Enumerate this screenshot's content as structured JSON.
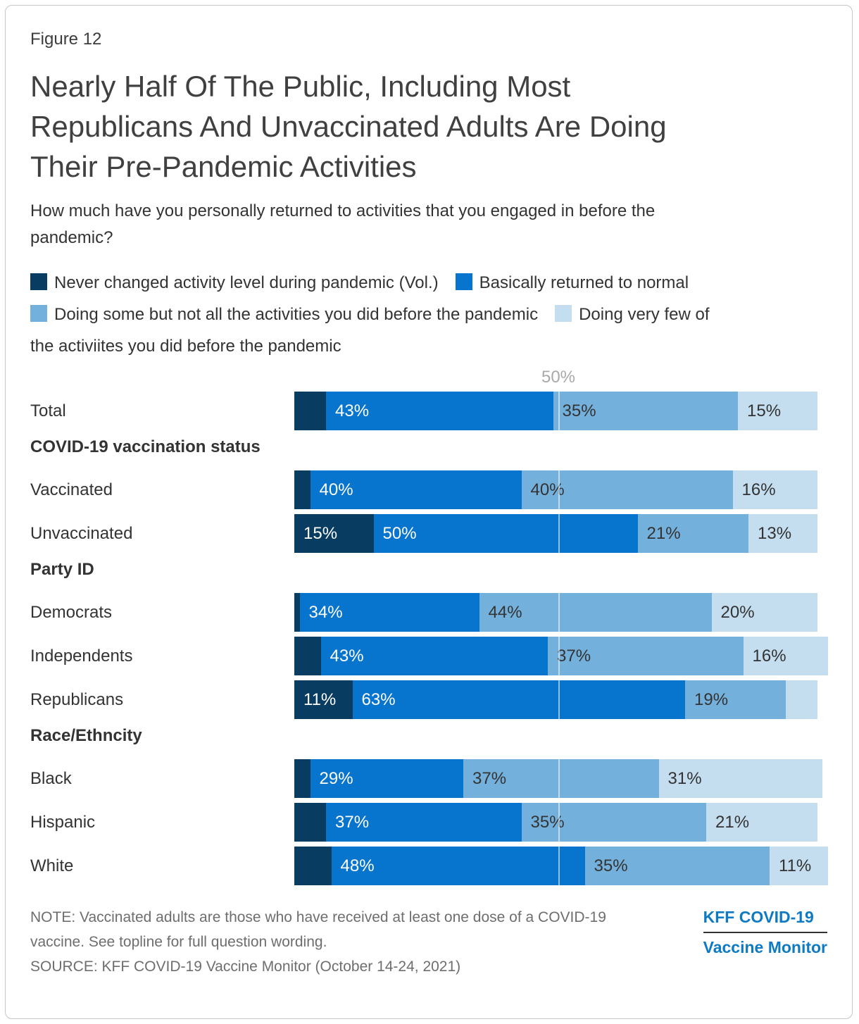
{
  "figure_label": "Figure 12",
  "title": "Nearly Half Of The Public, Including Most Republicans And Unvaccinated Adults Are Doing Their Pre-Pandemic Activities",
  "title_lines": [
    "Nearly Half Of The Public, Including Most",
    "Republicans And Unvaccinated Adults Are Doing",
    "Their Pre-Pandemic Activities"
  ],
  "subtitle": "How much have you personally returned to activities that you engaged in before the pandemic?",
  "subtitle_lines": [
    "How much have you personally returned to activities that you engaged in before the",
    "pandemic?"
  ],
  "colors": {
    "dark": "#083c61",
    "blue": "#0774cd",
    "light": "#74b0dc",
    "lightest": "#c4def0",
    "label_on_dark": "#ffffff",
    "label_on_light": "#333333",
    "logo_blue": "#0e7ac4",
    "axis_gray": "#a9a9a9",
    "note_gray": "#6e6e6e"
  },
  "legend_rows": [
    [
      {
        "swatch": "dark",
        "text": "Never changed activity level during pandemic (Vol.)"
      },
      {
        "swatch": "blue",
        "text": "Basically returned to normal"
      }
    ],
    [
      {
        "swatch": "light",
        "text": "Doing some but not all the activities you did before the pandemic"
      },
      {
        "swatch": "lightest",
        "text": "Doing very few of"
      }
    ],
    [
      {
        "text": "the activiites you did before the pandemic"
      }
    ]
  ],
  "chart_data": {
    "type": "bar",
    "stacked": true,
    "orientation": "horizontal",
    "unit": "%",
    "xlim": [
      0,
      100
    ],
    "gridline": {
      "x": 50,
      "label": "50%"
    },
    "series_color_keys": [
      "dark",
      "blue",
      "light",
      "lightest"
    ],
    "series": [
      {
        "name": "Never changed activity level during pandemic (Vol.)",
        "values": [
          6,
          3,
          15,
          1,
          5,
          11,
          3,
          6,
          7
        ]
      },
      {
        "name": "Basically returned to normal",
        "values": [
          43,
          40,
          50,
          34,
          43,
          63,
          29,
          37,
          48
        ]
      },
      {
        "name": "Doing some but not all the activities you did before the pandemic",
        "values": [
          35,
          40,
          21,
          44,
          37,
          19,
          37,
          35,
          35
        ]
      },
      {
        "name": "Doing very few of the activiites you did before the pandemic",
        "values": [
          15,
          16,
          13,
          20,
          16,
          6,
          31,
          21,
          11
        ]
      }
    ],
    "categories": [
      "Total",
      "Vaccinated",
      "Unvaccinated",
      "Democrats",
      "Independents",
      "Republicans",
      "Black",
      "Hispanic",
      "White"
    ],
    "groups": [
      {
        "header": "COVID-19 vaccination status",
        "categories": [
          "Vaccinated",
          "Unvaccinated"
        ]
      },
      {
        "header": "Party ID",
        "categories": [
          "Democrats",
          "Independents",
          "Republicans"
        ]
      },
      {
        "header": "Race/Ethncity",
        "categories": [
          "Black",
          "Hispanic",
          "White"
        ]
      }
    ],
    "rows": [
      {
        "kind": "bar",
        "label": "Total",
        "values": [
          6,
          43,
          35,
          15
        ],
        "value_labels": [
          "",
          "43%",
          "35%",
          "15%"
        ]
      },
      {
        "kind": "header",
        "label": "COVID-19 vaccination status"
      },
      {
        "kind": "bar",
        "label": "Vaccinated",
        "values": [
          3,
          40,
          40,
          16
        ],
        "value_labels": [
          "",
          "40%",
          "40%",
          "16%"
        ]
      },
      {
        "kind": "bar",
        "label": "Unvaccinated",
        "values": [
          15,
          50,
          21,
          13
        ],
        "value_labels": [
          "15%",
          "50%",
          "21%",
          "13%"
        ]
      },
      {
        "kind": "header",
        "label": "Party ID"
      },
      {
        "kind": "bar",
        "label": "Democrats",
        "values": [
          1,
          34,
          44,
          20
        ],
        "value_labels": [
          "",
          "34%",
          "44%",
          "20%"
        ]
      },
      {
        "kind": "bar",
        "label": "Independents",
        "values": [
          5,
          43,
          37,
          16
        ],
        "value_labels": [
          "",
          "43%",
          "37%",
          "16%"
        ]
      },
      {
        "kind": "bar",
        "label": "Republicans",
        "values": [
          11,
          63,
          19,
          6
        ],
        "value_labels": [
          "11%",
          "63%",
          "19%",
          ""
        ]
      },
      {
        "kind": "header",
        "label": "Race/Ethncity"
      },
      {
        "kind": "bar",
        "label": "Black",
        "values": [
          3,
          29,
          37,
          31
        ],
        "value_labels": [
          "",
          "29%",
          "37%",
          "31%"
        ]
      },
      {
        "kind": "bar",
        "label": "Hispanic",
        "values": [
          6,
          37,
          35,
          21
        ],
        "value_labels": [
          "",
          "37%",
          "35%",
          "21%"
        ]
      },
      {
        "kind": "bar",
        "label": "White",
        "values": [
          7,
          48,
          35,
          11
        ],
        "value_labels": [
          "",
          "48%",
          "35%",
          "11%"
        ]
      }
    ]
  },
  "note_lines": [
    "NOTE: Vaccinated adults are those who have received at least one dose of a COVID-19",
    "vaccine. See topline for full question wording."
  ],
  "source": "SOURCE: KFF COVID-19 Vaccine Monitor (October 14-24, 2021)",
  "logo": {
    "line1": "KFF COVID-19",
    "line2": "Vaccine Monitor"
  }
}
